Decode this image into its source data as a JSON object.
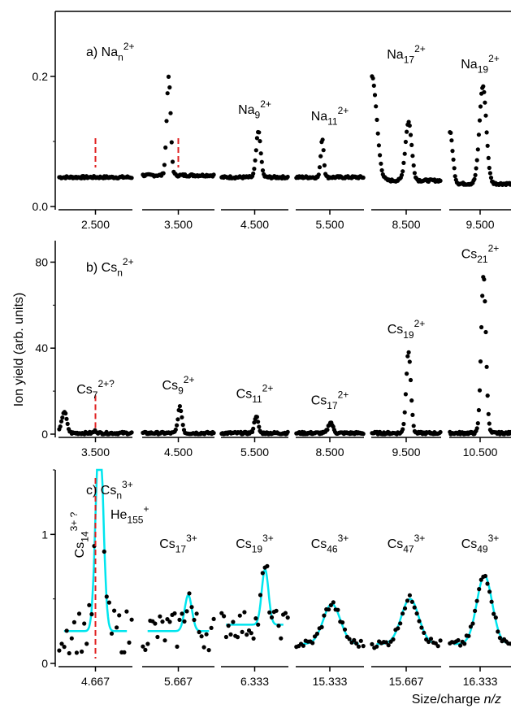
{
  "ylabel": "Ion yield (arb. units)",
  "xlabel_main": "Size/charge ",
  "xlabel_var": "n/z",
  "colors": {
    "data": "#000000",
    "fit": "#00e5ee",
    "marker": "#e02020"
  },
  "chart_data": [
    {
      "type": "scatter",
      "panel_label": "a) Na",
      "panel_sub": "n",
      "panel_sup": "2+",
      "ylim": [
        0,
        0.3
      ],
      "yticks": [
        0.0,
        0.2
      ],
      "ytick_labels": [
        "0.0",
        "0.2"
      ],
      "segments": [
        {
          "tick_label": "2.500",
          "center": 2.5,
          "ion": "",
          "ion_sub": "",
          "ion_sup": "",
          "marker": true,
          "baseline": 0.045,
          "peaks": []
        },
        {
          "tick_label": "3.500",
          "center": 3.5,
          "ion": "",
          "ion_sub": "",
          "ion_sup": "",
          "marker": true,
          "baseline": 0.048,
          "peaks": [
            [
              3.38,
              0.15,
              0.025
            ]
          ]
        },
        {
          "tick_label": "4.500",
          "center": 4.5,
          "ion": "Na",
          "ion_sub": "9",
          "ion_sup": "2+",
          "marker": false,
          "baseline": 0.045,
          "peaks": [
            [
              4.55,
              0.07,
              0.03
            ]
          ]
        },
        {
          "tick_label": "5.500",
          "center": 5.5,
          "ion": "Na",
          "ion_sub": "11",
          "ion_sup": "2+",
          "marker": false,
          "baseline": 0.045,
          "peaks": [
            [
              5.4,
              0.06,
              0.02
            ]
          ]
        },
        {
          "tick_label": "8.500",
          "center": 8.5,
          "ion": "Na",
          "ion_sub": "17",
          "ion_sup": "2+",
          "marker": false,
          "baseline": 0.04,
          "peaks": [
            [
              8.06,
              0.16,
              0.06
            ],
            [
              8.53,
              0.09,
              0.04
            ]
          ]
        },
        {
          "tick_label": "9.500",
          "center": 9.5,
          "ion": "Na",
          "ion_sub": "19",
          "ion_sup": "2+",
          "marker": false,
          "baseline": 0.035,
          "peaks": [
            [
              9.54,
              0.15,
              0.05
            ],
            [
              9.06,
              0.08,
              0.04
            ]
          ]
        }
      ]
    },
    {
      "type": "scatter",
      "panel_label": "b) Cs",
      "panel_sub": "n",
      "panel_sup": "2+",
      "ylim": [
        0,
        90
      ],
      "yticks": [
        0,
        40,
        80
      ],
      "ytick_labels": [
        "0",
        "40",
        "80"
      ],
      "segments": [
        {
          "tick_label": "3.500",
          "center": 3.5,
          "ion": "Cs",
          "ion_sub": "7",
          "ion_sup": "2+?",
          "marker": true,
          "baseline": 0.5,
          "peaks": [
            [
              3.12,
              10,
              0.03
            ],
            [
              3.5,
              1,
              0.02
            ]
          ]
        },
        {
          "tick_label": "4.500",
          "center": 4.5,
          "ion": "Cs",
          "ion_sub": "9",
          "ion_sup": "2+",
          "marker": false,
          "baseline": 0.5,
          "peaks": [
            [
              4.52,
              12,
              0.025
            ]
          ]
        },
        {
          "tick_label": "5.500",
          "center": 5.5,
          "ion": "Cs",
          "ion_sub": "11",
          "ion_sup": "2+",
          "marker": false,
          "baseline": 0.5,
          "peaks": [
            [
              5.52,
              8,
              0.025
            ]
          ]
        },
        {
          "tick_label": "8.500",
          "center": 8.5,
          "ion": "Cs",
          "ion_sub": "17",
          "ion_sup": "2+",
          "marker": false,
          "baseline": 0.5,
          "peaks": [
            [
              8.51,
              5,
              0.03
            ]
          ]
        },
        {
          "tick_label": "9.500",
          "center": 9.5,
          "ion": "Cs",
          "ion_sub": "19",
          "ion_sup": "2+",
          "marker": false,
          "baseline": 0.5,
          "peaks": [
            [
              9.53,
              38,
              0.03
            ]
          ]
        },
        {
          "tick_label": "10.500",
          "center": 10.5,
          "ion": "Cs",
          "ion_sub": "21",
          "ion_sup": "2+",
          "marker": false,
          "baseline": 0.5,
          "peaks": [
            [
              10.55,
              73,
              0.035
            ]
          ]
        }
      ]
    },
    {
      "type": "scatter",
      "panel_label": "c) Cs",
      "panel_sub": "n",
      "panel_sup": "3+",
      "ylim": [
        0,
        1.5
      ],
      "yticks": [
        0,
        1
      ],
      "ytick_labels": [
        "0",
        "1"
      ],
      "extra_label": "He",
      "extra_sub": "155",
      "extra_sup": "+",
      "marker_label": "Cs",
      "marker_sub": "14",
      "marker_sup": "3+ ?",
      "segments": [
        {
          "tick_label": "4.667",
          "center": 4.667,
          "ion": "",
          "ion_sub": "",
          "ion_sup": "",
          "marker": true,
          "baseline": 0.25,
          "peaks": [
            [
              4.68,
              1.6,
              0.012
            ]
          ],
          "noise": 0.35,
          "fit": true
        },
        {
          "tick_label": "5.667",
          "center": 5.667,
          "ion": "Cs",
          "ion_sub": "17",
          "ion_sup": "3+",
          "marker": false,
          "baseline": 0.25,
          "peaks": [
            [
              5.7,
              0.28,
              0.012
            ]
          ],
          "noise": 0.3,
          "fit": true
        },
        {
          "tick_label": "6.333",
          "center": 6.333,
          "ion": "Cs",
          "ion_sub": "19",
          "ion_sup": "3+",
          "marker": false,
          "baseline": 0.3,
          "peaks": [
            [
              6.37,
              0.43,
              0.012
            ]
          ],
          "noise": 0.22,
          "fit": true
        },
        {
          "tick_label": "15.333",
          "center": 15.333,
          "ion": "Cs",
          "ion_sub": "46",
          "ion_sup": "3+",
          "marker": false,
          "baseline": 0.15,
          "peaks": [
            [
              15.34,
              0.31,
              0.03
            ]
          ],
          "noise": 0.06,
          "fit": true
        },
        {
          "tick_label": "15.667",
          "center": 15.667,
          "ion": "Cs",
          "ion_sub": "47",
          "ion_sup": "3+",
          "marker": false,
          "baseline": 0.15,
          "peaks": [
            [
              15.68,
              0.35,
              0.03
            ]
          ],
          "noise": 0.06,
          "fit": true
        },
        {
          "tick_label": "16.333",
          "center": 16.333,
          "ion": "Cs",
          "ion_sub": "49",
          "ion_sup": "3+",
          "marker": false,
          "baseline": 0.15,
          "peaks": [
            [
              16.35,
              0.53,
              0.03
            ]
          ],
          "noise": 0.06,
          "fit": true
        }
      ]
    }
  ]
}
